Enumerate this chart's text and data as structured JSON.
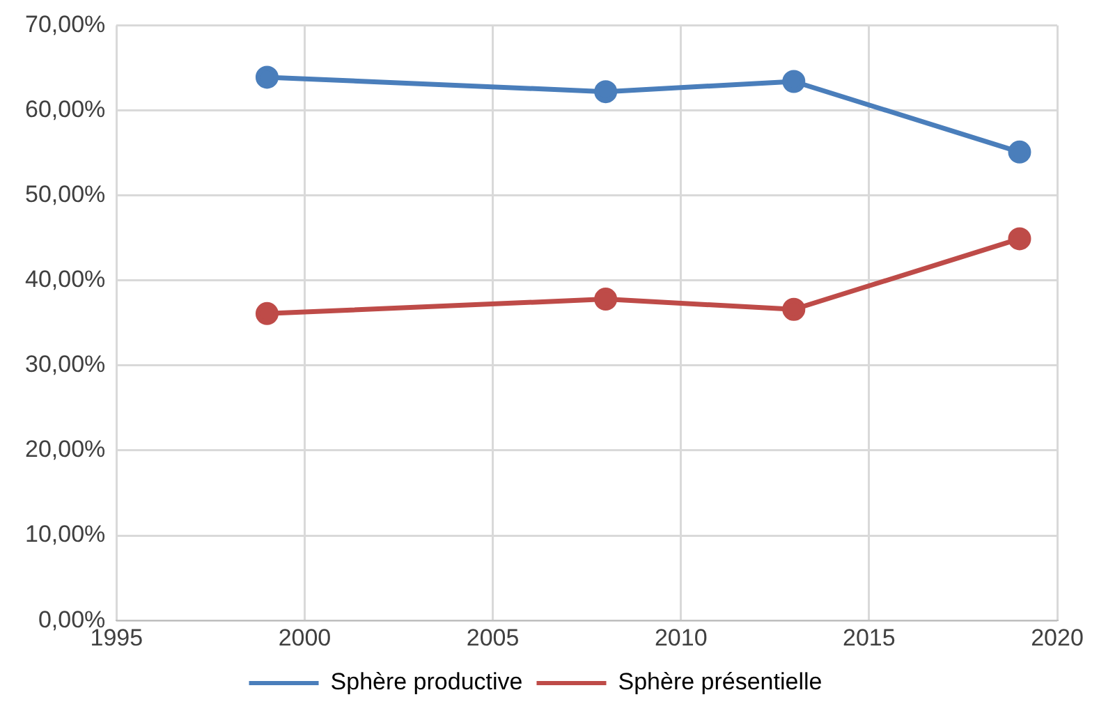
{
  "chart_data": {
    "type": "line",
    "x": [
      1999,
      2008,
      2013,
      2019
    ],
    "series": [
      {
        "name": "Sphère productive",
        "color": "#4a7ebb",
        "values": [
          63.9,
          62.2,
          63.4,
          55.1
        ]
      },
      {
        "name": "Sphère présentielle",
        "color": "#be4b48",
        "values": [
          36.1,
          37.8,
          36.6,
          44.9
        ]
      }
    ],
    "xlim": [
      1995,
      2020
    ],
    "xticks": [
      1995,
      2000,
      2005,
      2010,
      2015,
      2020
    ],
    "ylim": [
      0,
      70
    ],
    "yticks": [
      {
        "value": 0,
        "label": "0,00%"
      },
      {
        "value": 10,
        "label": "10,00%"
      },
      {
        "value": 20,
        "label": "20,00%"
      },
      {
        "value": 30,
        "label": "30,00%"
      },
      {
        "value": 40,
        "label": "40,00%"
      },
      {
        "value": 50,
        "label": "50,00%"
      },
      {
        "value": 60,
        "label": "60,00%"
      },
      {
        "value": 70,
        "label": "70,00%"
      }
    ],
    "grid": true,
    "legend": "bottom",
    "marker": "circle",
    "line_style": "solid"
  }
}
